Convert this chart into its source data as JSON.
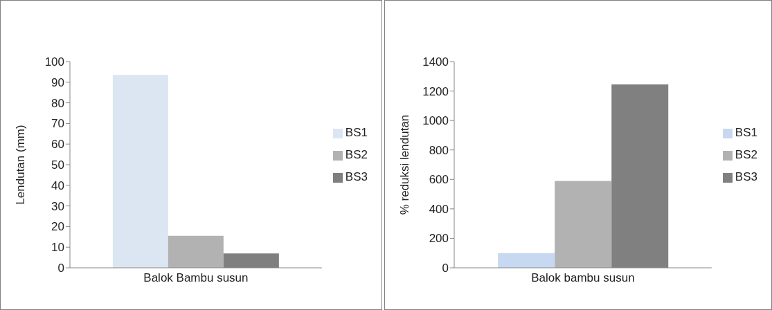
{
  "chart_data": [
    {
      "type": "bar",
      "ylabel": "Lendutan (mm)",
      "categories": [
        "Balok Bambu susun"
      ],
      "series": [
        {
          "name": "BS1",
          "color": "#dce6f2",
          "values": [
            93.5
          ]
        },
        {
          "name": "BS2",
          "color": "#b2b2b2",
          "values": [
            15.5
          ]
        },
        {
          "name": "BS3",
          "color": "#7f7f7f",
          "values": [
            7
          ]
        }
      ],
      "ylim": [
        0,
        100
      ],
      "yticks": [
        0,
        10,
        20,
        30,
        40,
        50,
        60,
        70,
        80,
        90,
        100
      ],
      "legend": "right",
      "grid": false
    },
    {
      "type": "bar",
      "ylabel": "% reduksi lendutan",
      "categories": [
        "Balok bambu susun"
      ],
      "series": [
        {
          "name": "BS1",
          "color": "#c6d9f1",
          "values": [
            100
          ]
        },
        {
          "name": "BS2",
          "color": "#b2b2b2",
          "values": [
            590
          ]
        },
        {
          "name": "BS3",
          "color": "#808080",
          "values": [
            1245
          ]
        }
      ],
      "ylim": [
        0,
        1400
      ],
      "yticks": [
        0,
        200,
        400,
        600,
        800,
        1000,
        1200,
        1400
      ],
      "legend": "right",
      "grid": false
    }
  ]
}
